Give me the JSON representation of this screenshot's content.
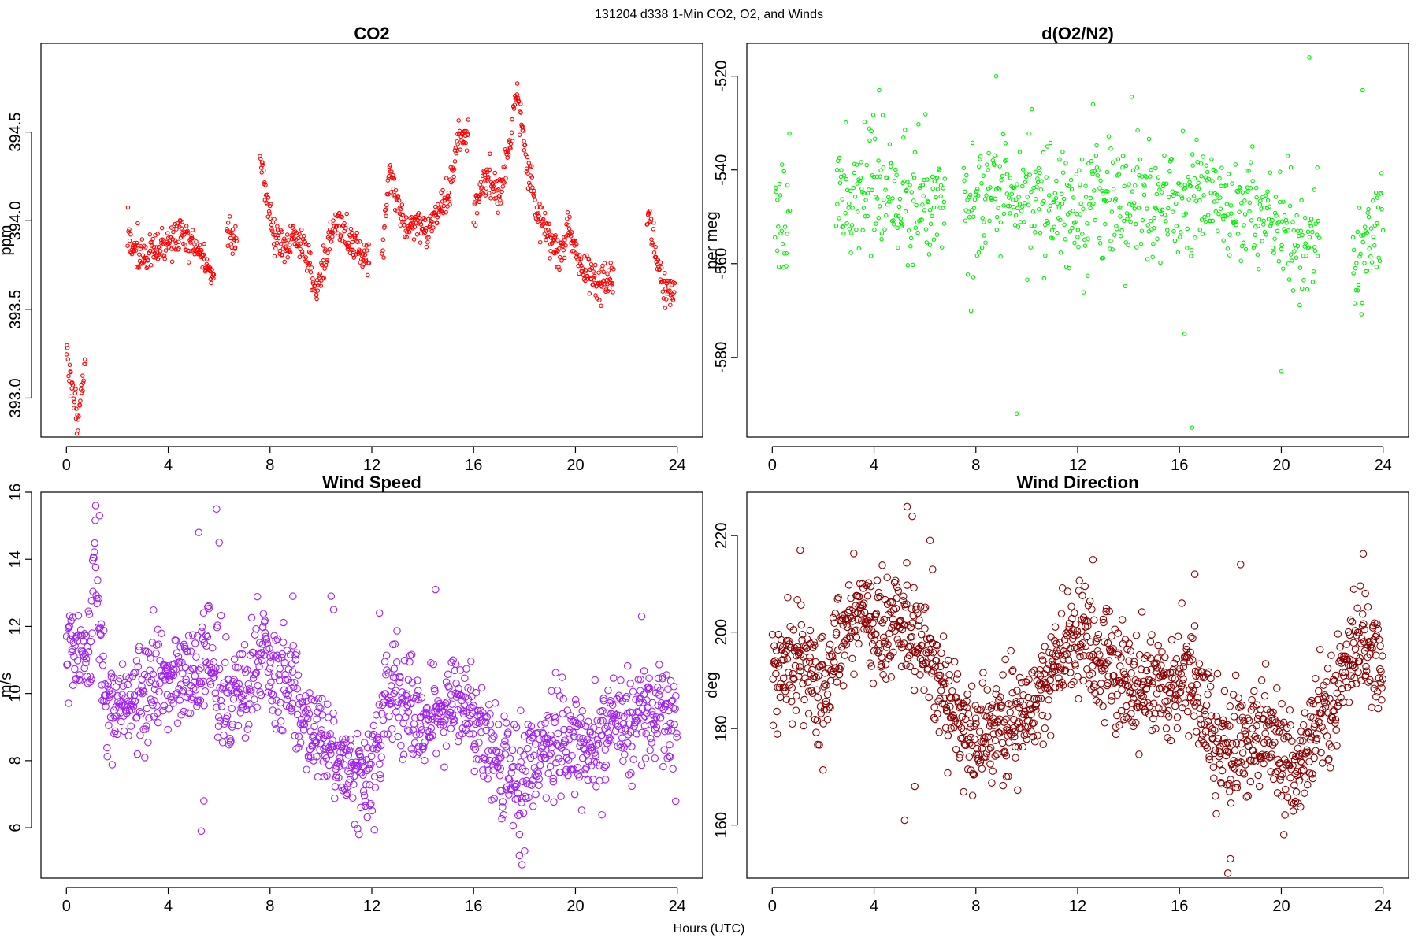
{
  "page": {
    "title": "131204   d338   1-Min CO2, O2, and Winds",
    "x_axis_label": "Hours (UTC)"
  },
  "chart_data": [
    {
      "type": "scatter",
      "title": "CO2",
      "ylabel": "ppm",
      "xlabel": "Hours (UTC)",
      "xlim": [
        -1,
        25
      ],
      "ylim": [
        392.78,
        395.0
      ],
      "x_ticks": [
        0,
        4,
        8,
        12,
        16,
        20,
        24
      ],
      "x_tick_labels": [
        "0",
        "4",
        "8",
        "12",
        "16",
        "20",
        "24"
      ],
      "y_ticks": [
        393.0,
        393.5,
        394.0,
        394.5
      ],
      "y_tick_labels": [
        "393.0",
        "393.5",
        "394.0",
        "394.5"
      ],
      "color": "#ff0000",
      "marker_radius": 2.2,
      "seed": 11,
      "points_per_hour": 52,
      "noise": 0.05,
      "segments": [
        [
          0.0,
          0.75,
          [
            [
              0.0,
              393.3
            ],
            [
              0.2,
              393.05
            ],
            [
              0.45,
              392.9
            ],
            [
              0.6,
              393.05
            ],
            [
              0.75,
              393.2
            ]
          ]
        ],
        [
          2.4,
          5.8,
          [
            [
              2.4,
              393.9
            ],
            [
              3.0,
              393.8
            ],
            [
              3.6,
              393.83
            ],
            [
              4.0,
              393.88
            ],
            [
              4.5,
              393.93
            ],
            [
              5.0,
              393.85
            ],
            [
              5.4,
              393.8
            ],
            [
              5.8,
              393.65
            ]
          ]
        ],
        [
          6.3,
          6.7,
          [
            [
              6.3,
              393.98
            ],
            [
              6.7,
              393.85
            ]
          ]
        ],
        [
          7.6,
          11.9,
          [
            [
              7.6,
              394.4
            ],
            [
              7.9,
              394.1
            ],
            [
              8.2,
              393.9
            ],
            [
              8.6,
              393.85
            ],
            [
              9.0,
              393.9
            ],
            [
              9.4,
              393.85
            ],
            [
              9.8,
              393.6
            ],
            [
              10.2,
              393.8
            ],
            [
              10.6,
              394.0
            ],
            [
              11.0,
              393.9
            ],
            [
              11.4,
              393.85
            ],
            [
              11.9,
              393.8
            ]
          ]
        ],
        [
          12.4,
          15.8,
          [
            [
              12.4,
              393.8
            ],
            [
              12.7,
              394.3
            ],
            [
              13.0,
              394.1
            ],
            [
              13.4,
              393.95
            ],
            [
              13.8,
              394.0
            ],
            [
              14.2,
              393.95
            ],
            [
              14.6,
              394.05
            ],
            [
              15.0,
              394.15
            ],
            [
              15.4,
              394.45
            ],
            [
              15.8,
              394.5
            ]
          ]
        ],
        [
          16.0,
          21.5,
          [
            [
              16.0,
              394.05
            ],
            [
              16.5,
              394.25
            ],
            [
              17.0,
              394.15
            ],
            [
              17.4,
              394.4
            ],
            [
              17.7,
              394.75
            ],
            [
              18.0,
              394.4
            ],
            [
              18.4,
              394.1
            ],
            [
              18.8,
              393.95
            ],
            [
              19.3,
              393.8
            ],
            [
              19.7,
              393.95
            ],
            [
              20.2,
              393.75
            ],
            [
              20.6,
              393.7
            ],
            [
              21.0,
              393.62
            ],
            [
              21.5,
              393.7
            ]
          ]
        ],
        [
          22.8,
          23.9,
          [
            [
              22.8,
              394.1
            ],
            [
              23.1,
              393.85
            ],
            [
              23.5,
              393.6
            ],
            [
              23.9,
              393.65
            ]
          ]
        ]
      ]
    },
    {
      "type": "scatter",
      "title": "d(O2/N2)",
      "ylabel": "per meg",
      "xlabel": "Hours (UTC)",
      "xlim": [
        -1,
        25
      ],
      "ylim": [
        -597,
        -513
      ],
      "x_ticks": [
        0,
        4,
        8,
        12,
        16,
        20,
        24
      ],
      "x_tick_labels": [
        "0",
        "4",
        "8",
        "12",
        "16",
        "20",
        "24"
      ],
      "y_ticks": [
        -520,
        -540,
        -560,
        -580
      ],
      "y_tick_labels": [
        "-520",
        "-540",
        "-560",
        "-580"
      ],
      "color": "#00ee00",
      "marker_radius": 2.2,
      "seed": 23,
      "points_per_hour": 40,
      "noise": 6.5,
      "segments": [
        [
          0.1,
          0.7,
          [
            [
              0.1,
              -546
            ],
            [
              0.7,
              -547
            ]
          ]
        ],
        [
          2.5,
          6.8,
          [
            [
              2.5,
              -546
            ],
            [
              3.5,
              -543
            ],
            [
              4.5,
              -545
            ],
            [
              5.5,
              -547
            ],
            [
              6.0,
              -545
            ],
            [
              6.8,
              -545
            ]
          ]
        ],
        [
          7.5,
          21.5,
          [
            [
              7.5,
              -546
            ],
            [
              9.0,
              -548
            ],
            [
              10.5,
              -545
            ],
            [
              12.0,
              -547
            ],
            [
              13.5,
              -547
            ],
            [
              15.0,
              -546
            ],
            [
              16.5,
              -547
            ],
            [
              18.0,
              -547
            ],
            [
              19.0,
              -550
            ],
            [
              20.0,
              -553
            ],
            [
              20.8,
              -556
            ],
            [
              21.5,
              -551
            ]
          ]
        ],
        [
          22.8,
          24.0,
          [
            [
              22.8,
              -563
            ],
            [
              23.4,
              -555
            ],
            [
              24.0,
              -546
            ]
          ]
        ]
      ],
      "outliers": [
        [
          8.8,
          -520
        ],
        [
          9.6,
          -592
        ],
        [
          16.5,
          -595
        ],
        [
          16.2,
          -575
        ],
        [
          20.0,
          -583
        ],
        [
          21.1,
          -516
        ],
        [
          23.2,
          -523
        ],
        [
          4.2,
          -523
        ],
        [
          12.6,
          -526
        ]
      ]
    },
    {
      "type": "scatter",
      "title": "Wind Speed",
      "ylabel": "m/s",
      "xlabel": "Hours (UTC)",
      "xlim": [
        -1,
        25
      ],
      "ylim": [
        4.5,
        16.0
      ],
      "x_ticks": [
        0,
        4,
        8,
        12,
        16,
        20,
        24
      ],
      "x_tick_labels": [
        "0",
        "4",
        "8",
        "12",
        "16",
        "20",
        "24"
      ],
      "y_ticks": [
        6,
        8,
        10,
        12,
        14,
        16
      ],
      "y_tick_labels": [
        "6",
        "8",
        "10",
        "12",
        "14",
        "16"
      ],
      "color": "#a020f0",
      "marker_radius": 4.2,
      "seed": 37,
      "points_per_hour": 55,
      "noise": 0.75,
      "segments": [
        [
          0.0,
          24.0,
          [
            [
              0.0,
              11.3
            ],
            [
              0.5,
              11.0
            ],
            [
              0.9,
              10.6
            ],
            [
              1.1,
              14.5
            ],
            [
              1.3,
              11.5
            ],
            [
              1.6,
              10.0
            ],
            [
              2.0,
              9.4
            ],
            [
              2.5,
              9.8
            ],
            [
              3.0,
              9.8
            ],
            [
              3.5,
              10.3
            ],
            [
              4.0,
              10.5
            ],
            [
              4.5,
              10.3
            ],
            [
              5.0,
              10.5
            ],
            [
              5.5,
              11.2
            ],
            [
              5.8,
              10.6
            ],
            [
              6.2,
              9.8
            ],
            [
              6.8,
              9.9
            ],
            [
              7.3,
              10.6
            ],
            [
              7.8,
              11.1
            ],
            [
              8.2,
              10.6
            ],
            [
              8.8,
              10.2
            ],
            [
              9.3,
              9.4
            ],
            [
              9.8,
              8.7
            ],
            [
              10.3,
              8.5
            ],
            [
              10.8,
              8.1
            ],
            [
              11.2,
              7.7
            ],
            [
              11.6,
              7.5
            ],
            [
              12.0,
              7.4
            ],
            [
              12.3,
              8.8
            ],
            [
              12.6,
              10.3
            ],
            [
              13.0,
              10.3
            ],
            [
              13.5,
              9.2
            ],
            [
              14.0,
              9.0
            ],
            [
              14.5,
              9.3
            ],
            [
              15.0,
              9.6
            ],
            [
              15.5,
              9.7
            ],
            [
              16.0,
              9.4
            ],
            [
              16.5,
              8.4
            ],
            [
              17.0,
              7.7
            ],
            [
              17.5,
              7.5
            ],
            [
              18.0,
              7.3
            ],
            [
              18.5,
              8.4
            ],
            [
              19.0,
              8.7
            ],
            [
              19.5,
              8.7
            ],
            [
              20.0,
              8.5
            ],
            [
              20.5,
              8.4
            ],
            [
              21.0,
              8.3
            ],
            [
              21.5,
              9.5
            ],
            [
              22.0,
              9.0
            ],
            [
              22.5,
              9.3
            ],
            [
              23.0,
              9.2
            ],
            [
              23.5,
              9.2
            ],
            [
              24.0,
              9.0
            ]
          ]
        ]
      ],
      "outliers": [
        [
          1.15,
          15.6
        ],
        [
          1.3,
          15.3
        ],
        [
          5.2,
          14.8
        ],
        [
          5.3,
          5.9
        ],
        [
          5.4,
          6.8
        ],
        [
          5.9,
          15.5
        ],
        [
          6.0,
          14.5
        ],
        [
          10.4,
          12.9
        ],
        [
          10.5,
          12.5
        ],
        [
          14.5,
          13.1
        ],
        [
          17.9,
          4.9
        ],
        [
          17.8,
          5.8
        ],
        [
          12.3,
          12.4
        ],
        [
          22.6,
          12.3
        ],
        [
          8.9,
          12.9
        ],
        [
          11.5,
          5.8
        ]
      ]
    },
    {
      "type": "scatter",
      "title": "Wind Direction",
      "ylabel": "deg",
      "xlabel": "Hours (UTC)",
      "xlim": [
        -1,
        25
      ],
      "ylim": [
        149,
        229
      ],
      "x_ticks": [
        0,
        4,
        8,
        12,
        16,
        20,
        24
      ],
      "x_tick_labels": [
        "0",
        "4",
        "8",
        "12",
        "16",
        "20",
        "24"
      ],
      "y_ticks": [
        160,
        180,
        200,
        220
      ],
      "y_tick_labels": [
        "160",
        "180",
        "200",
        "220"
      ],
      "color": "#8b0000",
      "marker_radius": 4.2,
      "seed": 53,
      "points_per_hour": 58,
      "noise": 5.5,
      "segments": [
        [
          0.0,
          24.0,
          [
            [
              0.0,
              190
            ],
            [
              0.5,
              195
            ],
            [
              1.0,
              196
            ],
            [
              1.5,
              190
            ],
            [
              2.0,
              187
            ],
            [
              2.5,
              196
            ],
            [
              3.0,
              200
            ],
            [
              3.5,
              203
            ],
            [
              4.0,
              202
            ],
            [
              4.5,
              200
            ],
            [
              5.0,
              202
            ],
            [
              5.5,
              200
            ],
            [
              6.0,
              198
            ],
            [
              6.5,
              190
            ],
            [
              7.0,
              184
            ],
            [
              7.5,
              181
            ],
            [
              8.0,
              179
            ],
            [
              8.5,
              180
            ],
            [
              9.0,
              181
            ],
            [
              9.5,
              181
            ],
            [
              10.0,
              183
            ],
            [
              10.5,
              188
            ],
            [
              11.0,
              193
            ],
            [
              11.5,
              194
            ],
            [
              12.0,
              199
            ],
            [
              12.5,
              198
            ],
            [
              13.0,
              195
            ],
            [
              13.5,
              191
            ],
            [
              14.0,
              189
            ],
            [
              14.5,
              187
            ],
            [
              15.0,
              187
            ],
            [
              15.5,
              188
            ],
            [
              16.0,
              190
            ],
            [
              16.5,
              191
            ],
            [
              17.0,
              184
            ],
            [
              17.5,
              175
            ],
            [
              18.0,
              176
            ],
            [
              18.5,
              177
            ],
            [
              19.0,
              180
            ],
            [
              19.5,
              179
            ],
            [
              20.0,
              175
            ],
            [
              20.5,
              171
            ],
            [
              21.0,
              175
            ],
            [
              21.5,
              181
            ],
            [
              22.0,
              184
            ],
            [
              22.5,
              192
            ],
            [
              23.0,
              198
            ],
            [
              23.5,
              198
            ],
            [
              24.0,
              191
            ]
          ]
        ]
      ],
      "outliers": [
        [
          5.3,
          226
        ],
        [
          5.5,
          224
        ],
        [
          5.2,
          161
        ],
        [
          5.6,
          168
        ],
        [
          6.2,
          219
        ],
        [
          6.3,
          213
        ],
        [
          1.1,
          217
        ],
        [
          17.9,
          150
        ],
        [
          18.0,
          153
        ],
        [
          18.4,
          214
        ],
        [
          20.1,
          158
        ],
        [
          23.3,
          208
        ],
        [
          12.6,
          215
        ],
        [
          9.2,
          170
        ],
        [
          16.6,
          212
        ]
      ]
    }
  ]
}
